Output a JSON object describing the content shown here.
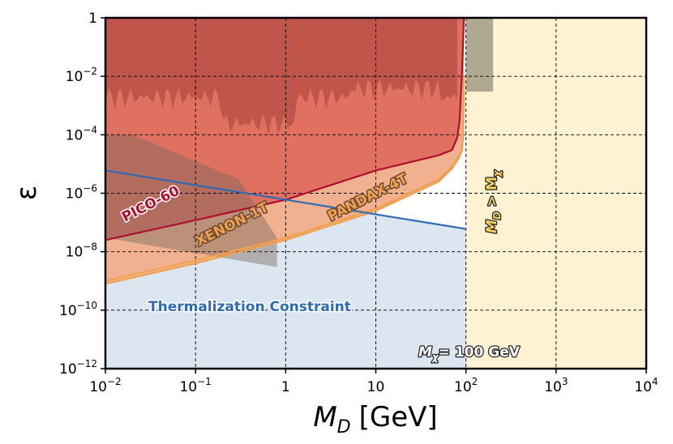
{
  "chart_data": {
    "type": "area",
    "title": "",
    "xlabel": "M_D [GeV]",
    "xlabel_main": "M",
    "xlabel_sub": "D",
    "xlabel_unit": "[GeV]",
    "ylabel": "ε",
    "xscale": "log",
    "yscale": "log",
    "xlim": [
      0.01,
      10000
    ],
    "ylim": [
      1e-12,
      1
    ],
    "grid": true,
    "x_ticks": [
      {
        "value": 0.01,
        "base": "10",
        "exp": "−2"
      },
      {
        "value": 0.1,
        "base": "10",
        "exp": "−1"
      },
      {
        "value": 1,
        "base": "1",
        "exp": ""
      },
      {
        "value": 10,
        "base": "10",
        "exp": ""
      },
      {
        "value": 100,
        "base": "10",
        "exp": "2"
      },
      {
        "value": 1000,
        "base": "10",
        "exp": "3"
      },
      {
        "value": 10000,
        "base": "10",
        "exp": "4"
      }
    ],
    "y_ticks": [
      {
        "value": 1,
        "base": "1",
        "exp": ""
      },
      {
        "value": 0.01,
        "base": "10",
        "exp": "−2"
      },
      {
        "value": 0.0001,
        "base": "10",
        "exp": "−4"
      },
      {
        "value": 1e-06,
        "base": "10",
        "exp": "−6"
      },
      {
        "value": 1e-08,
        "base": "10",
        "exp": "−8"
      },
      {
        "value": 1e-10,
        "base": "10",
        "exp": "−10"
      },
      {
        "value": 1e-12,
        "base": "10",
        "exp": "−12"
      }
    ],
    "series": [
      {
        "name": "PICO-60",
        "color": "#b01030",
        "fill": "#e07060",
        "x": [
          0.01,
          0.1,
          1,
          10,
          50,
          70,
          80,
          85,
          90,
          95
        ],
        "y": [
          2.5e-08,
          1.2e-07,
          6e-07,
          6e-06,
          2e-05,
          3e-05,
          8e-05,
          0.0003,
          0.01,
          1
        ]
      },
      {
        "name": "XENON-1T",
        "color": "#f0a050",
        "fill": "#f4b890",
        "x": [
          0.01,
          0.1,
          1,
          10,
          50,
          70,
          80,
          85,
          90,
          93,
          95
        ],
        "y": [
          1e-09,
          5e-09,
          3e-08,
          3e-07,
          3e-06,
          8e-06,
          1.5e-05,
          2e-05,
          3e-05,
          0.0001,
          0.01
        ]
      },
      {
        "name": "PANDAX-4T",
        "color": "#f0a050",
        "fill": "#f4b890",
        "x": [
          0.01,
          0.1,
          1,
          10,
          50,
          70,
          80,
          85,
          90,
          93,
          95
        ],
        "y": [
          8e-10,
          4e-09,
          2.5e-08,
          2.5e-07,
          2.5e-06,
          7e-06,
          1.3e-05,
          1.8e-05,
          2.8e-05,
          9e-05,
          0.01
        ]
      },
      {
        "name": "Thermalization Constraint",
        "color": "#2f6bb5",
        "fill": "#dce6f1",
        "x": [
          0.01,
          100
        ],
        "y": [
          6e-06,
          6e-08
        ]
      }
    ],
    "annotations": [
      {
        "text": "PICO-60",
        "color": "#b01030"
      },
      {
        "text": "XENON-1T",
        "color": "#f0a050"
      },
      {
        "text": "PANDAX-4T",
        "color": "#f0a050"
      },
      {
        "text": "Thermalization Constraint",
        "color": "#2f6bb5"
      },
      {
        "text_main": "M",
        "text_sub": "χ",
        "text_rest": "= 100 GeV",
        "color": "#ffffff"
      },
      {
        "text_main": "M",
        "text_sub": "D",
        "text_mid": " > M",
        "text_sub2": "χ",
        "color": "#f5d060"
      }
    ],
    "regions": [
      {
        "name": "M_D > M_χ",
        "x": [
          100,
          10000
        ],
        "color": "#fff2d3"
      }
    ]
  }
}
